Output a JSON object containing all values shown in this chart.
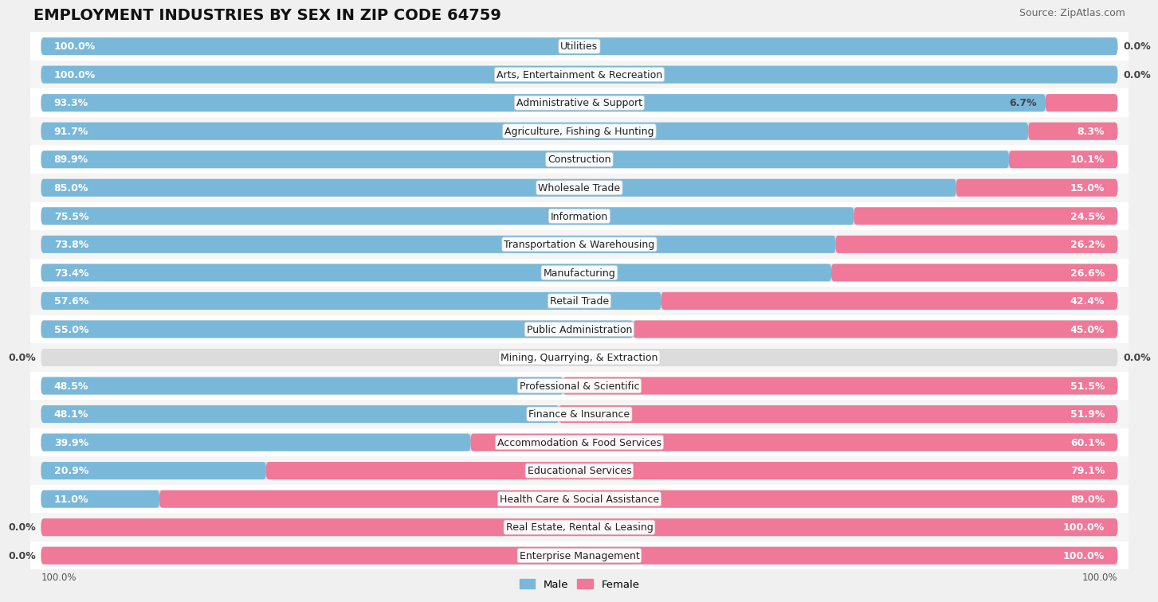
{
  "title": "EMPLOYMENT INDUSTRIES BY SEX IN ZIP CODE 64759",
  "source": "Source: ZipAtlas.com",
  "categories": [
    "Utilities",
    "Arts, Entertainment & Recreation",
    "Administrative & Support",
    "Agriculture, Fishing & Hunting",
    "Construction",
    "Wholesale Trade",
    "Information",
    "Transportation & Warehousing",
    "Manufacturing",
    "Retail Trade",
    "Public Administration",
    "Mining, Quarrying, & Extraction",
    "Professional & Scientific",
    "Finance & Insurance",
    "Accommodation & Food Services",
    "Educational Services",
    "Health Care & Social Assistance",
    "Real Estate, Rental & Leasing",
    "Enterprise Management"
  ],
  "male": [
    100.0,
    100.0,
    93.3,
    91.7,
    89.9,
    85.0,
    75.5,
    73.8,
    73.4,
    57.6,
    55.0,
    0.0,
    48.5,
    48.1,
    39.9,
    20.9,
    11.0,
    0.0,
    0.0
  ],
  "female": [
    0.0,
    0.0,
    6.7,
    8.3,
    10.1,
    15.0,
    24.5,
    26.2,
    26.6,
    42.4,
    45.0,
    0.0,
    51.5,
    51.9,
    60.1,
    79.1,
    89.0,
    100.0,
    100.0
  ],
  "male_color": "#7ab8d9",
  "female_color": "#f07898",
  "bg_color": "#f0f0f0",
  "bar_bg_color": "#dcdcdc",
  "row_bg_even": "#ffffff",
  "row_bg_odd": "#f5f5f5",
  "title_fontsize": 14,
  "source_fontsize": 9,
  "label_fontsize": 9,
  "category_fontsize": 9
}
